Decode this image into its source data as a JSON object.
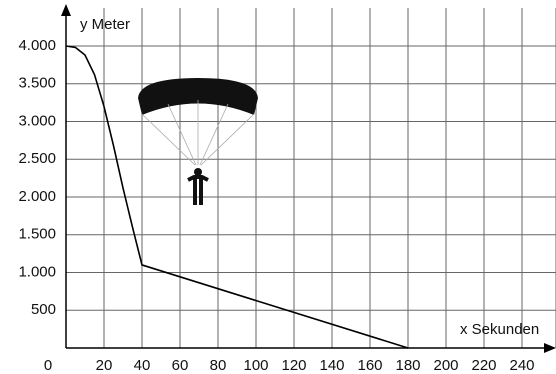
{
  "chart_data": {
    "type": "line",
    "x_label": "x Sekunden",
    "y_label": "y Meter",
    "series": [
      {
        "color": "#000000",
        "x": [
          0,
          5,
          10,
          15,
          20,
          25,
          30,
          35,
          40,
          180
        ],
        "values": [
          4000,
          3980,
          3880,
          3620,
          3200,
          2680,
          2120,
          1600,
          1100,
          0
        ]
      }
    ],
    "xlim": [
      0,
      250
    ],
    "ylim": [
      0,
      4000
    ],
    "xticks": [
      0,
      20,
      40,
      60,
      80,
      100,
      120,
      140,
      160,
      180,
      200,
      220,
      240
    ],
    "yticks": [
      500,
      {
        "value": 1000,
        "label": "1.000"
      },
      {
        "value": 1500,
        "label": "1.500"
      },
      {
        "value": 2000,
        "label": "2.000"
      },
      {
        "value": 2500,
        "label": "2.500"
      },
      {
        "value": 3000,
        "label": "3.000"
      },
      {
        "value": 3500,
        "label": "3.500"
      },
      {
        "value": 4000,
        "label": "4.000"
      }
    ],
    "grid": true
  }
}
